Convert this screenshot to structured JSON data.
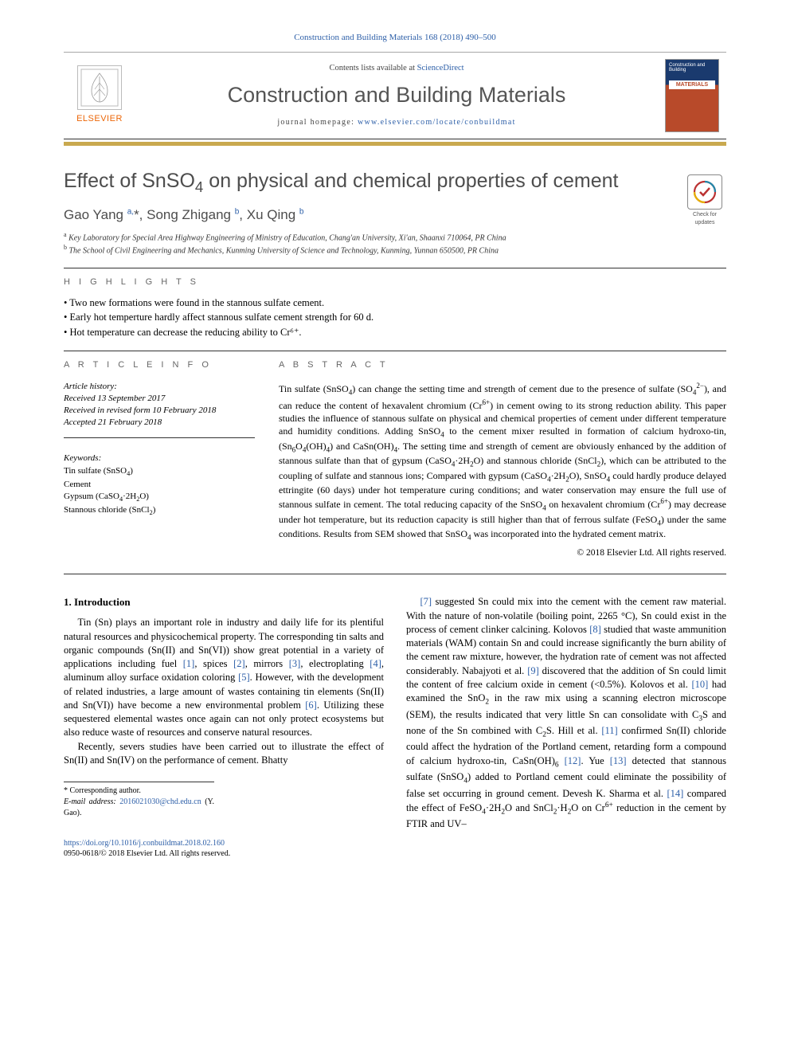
{
  "journal_ref": {
    "text_prefix": "Construction and Building Materials 168 (2018) 490–500",
    "link_text": "Construction and Building Materials 168 (2018) 490–500"
  },
  "header": {
    "contents_line_prefix": "Contents lists available at ",
    "contents_line_link": "ScienceDirect",
    "journal_title": "Construction and Building Materials",
    "homepage_label": "journal homepage: ",
    "homepage_url": "www.elsevier.com/locate/conbuildmat",
    "elsevier_label": "ELSEVIER",
    "cover": {
      "top_text": "Construction and Building",
      "mat_text": "MATERIALS"
    }
  },
  "article": {
    "title_html": "Effect of SnSO<sub>4</sub> on physical and chemical properties of cement",
    "authors_html": "Gao Yang <sup>a,</sup>*, Song Zhigang <sup>b</sup>, Xu Qing <sup>b</sup>",
    "affiliations": [
      {
        "marker": "a",
        "text": "Key Laboratory for Special Area Highway Engineering of Ministry of Education, Chang'an University, Xi'an, Shaanxi 710064, PR China"
      },
      {
        "marker": "b",
        "text": "The School of Civil Engineering and Mechanics, Kunming University of Science and Technology, Kunming, Yunnan 650500, PR China"
      }
    ],
    "check_updates_text": "Check for updates"
  },
  "highlights": {
    "label": "H I G H L I G H T S",
    "items": [
      "Two new formations were found in the stannous sulfate cement.",
      "Early hot temperture hardly affect stannous sulfate cement strength for 60 d.",
      "Hot temperature can decrease the reducing ability to Cr⁶⁺."
    ]
  },
  "article_info": {
    "label": "A R T I C L E   I N F O",
    "history_head": "Article history:",
    "history": [
      "Received 13 September 2017",
      "Received in revised form 10 February 2018",
      "Accepted 21 February 2018"
    ],
    "keywords_head": "Keywords:",
    "keywords_html": [
      "Tin sulfate (SnSO<sub>4</sub>)",
      "Cement",
      "Gypsum (CaSO<sub>4</sub>·2H<sub>2</sub>O)",
      "Stannous chloride (SnCl<sub>2</sub>)"
    ]
  },
  "abstract": {
    "label": "A B S T R A C T",
    "text_html": "Tin sulfate (SnSO<sub>4</sub>) can change the setting time and strength of cement due to the presence of sulfate (SO<sub>4</sub><sup>2−</sup>), and can reduce the content of hexavalent chromium (Cr<sup>6+</sup>) in cement owing to its strong reduction ability. This paper studies the influence of stannous sulfate on physical and chemical properties of cement under different temperature and humidity conditions. Adding SnSO<sub>4</sub> to the cement mixer resulted in formation of calcium hydroxo-tin, (Sn<sub>6</sub>O<sub>4</sub>(OH)<sub>4</sub>) and CaSn(OH)<sub>4</sub>. The setting time and strength of cement are obviously enhanced by the addition of stannous sulfate than that of gypsum (CaSO<sub>4</sub>·2H<sub>2</sub>O) and stannous chloride (SnCl<sub>2</sub>), which can be attributed to the coupling of sulfate and stannous ions; Compared with gypsum (CaSO<sub>4</sub>·2H<sub>2</sub>O), SnSO<sub>4</sub> could hardly produce delayed ettringite (60 days) under hot temperature curing conditions; and water conservation may ensure the full use of stannous sulfate in cement. The total reducing capacity of the SnSO<sub>4</sub> on hexavalent chromium (Cr<sup>6+</sup>) may decrease under hot temperature, but its reduction capacity is still higher than that of ferrous sulfate (FeSO<sub>4</sub>) under the same conditions. Results from SEM showed that SnSO<sub>4</sub> was incorporated into the hydrated cement matrix.",
    "copyright": "© 2018 Elsevier Ltd. All rights reserved."
  },
  "body": {
    "section_number": "1.",
    "section_title": "Introduction",
    "col1_p1_html": "Tin (Sn) plays an important role in industry and daily life for its plentiful natural resources and physicochemical property. The corresponding tin salts and organic compounds (Sn(II) and Sn(VI)) show great potential in a variety of applications including fuel <a class=\"ref\" href=\"#\">[1]</a>, spices <a class=\"ref\" href=\"#\">[2]</a>, mirrors <a class=\"ref\" href=\"#\">[3]</a>, electroplating <a class=\"ref\" href=\"#\">[4]</a>, aluminum alloy surface oxidation coloring <a class=\"ref\" href=\"#\">[5]</a>. However, with the development of related industries, a large amount of wastes containing tin elements (Sn(II) and Sn(VI)) have become a new environmental problem <a class=\"ref\" href=\"#\">[6]</a>. Utilizing these sequestered elemental wastes once again can not only protect ecosystems but also reduce waste of resources and conserve natural resources.",
    "col1_p2_html": "Recently, severs studies have been carried out to illustrate the effect of Sn(II) and Sn(IV) on the performance of cement. Bhatty",
    "col2_p1_html": "<a class=\"ref\" href=\"#\">[7]</a> suggested Sn could mix into the cement with the cement raw material. With the nature of non-volatile (boiling point, 2265 °C), Sn could exist in the process of cement clinker calcining. Kolovos <a class=\"ref\" href=\"#\">[8]</a> studied that waste ammunition materials (WAM) contain Sn and could increase significantly the burn ability of the cement raw mixture, however, the hydration rate of cement was not affected considerably. Nabajyoti et al. <a class=\"ref\" href=\"#\">[9]</a> discovered that the addition of Sn could limit the content of free calcium oxide in cement (&lt;0.5%). Kolovos et al. <a class=\"ref\" href=\"#\">[10]</a> had examined the SnO<sub>2</sub> in the raw mix using a scanning electron microscope (SEM), the results indicated that very little Sn can consolidate with C<sub>3</sub>S and none of the Sn combined with C<sub>2</sub>S. Hill et al. <a class=\"ref\" href=\"#\">[11]</a> confirmed Sn(II) chloride could affect the hydration of the Portland cement, retarding form a compound of calcium hydroxo-tin, CaSn(OH)<sub>6</sub> <a class=\"ref\" href=\"#\">[12]</a>. Yue <a class=\"ref\" href=\"#\">[13]</a> detected that stannous sulfate (SnSO<sub>4</sub>) added to Portland cement could eliminate the possibility of false set occurring in ground cement. Devesh K. Sharma et al. <a class=\"ref\" href=\"#\">[14]</a> compared the effect of FeSO<sub>4</sub>·2H<sub>2</sub>O and SnCl<sub>2</sub>·H<sub>2</sub>O on Cr<sup>6+</sup> reduction in the cement by FTIR and UV–"
  },
  "footnotes": {
    "corr_label": "* Corresponding author.",
    "email_label": "E-mail address:",
    "email": "2016021030@chd.edu.cn",
    "email_suffix": "(Y. Gao)."
  },
  "doi": {
    "url": "https://doi.org/10.1016/j.conbuildmat.2018.02.160",
    "issn_line": "0950-0618/© 2018 Elsevier Ltd. All rights reserved."
  },
  "colors": {
    "link": "#2d5fa8",
    "orange": "#ec6607",
    "gray_text": "#4d4d4d",
    "gold": "#c9a94f"
  }
}
